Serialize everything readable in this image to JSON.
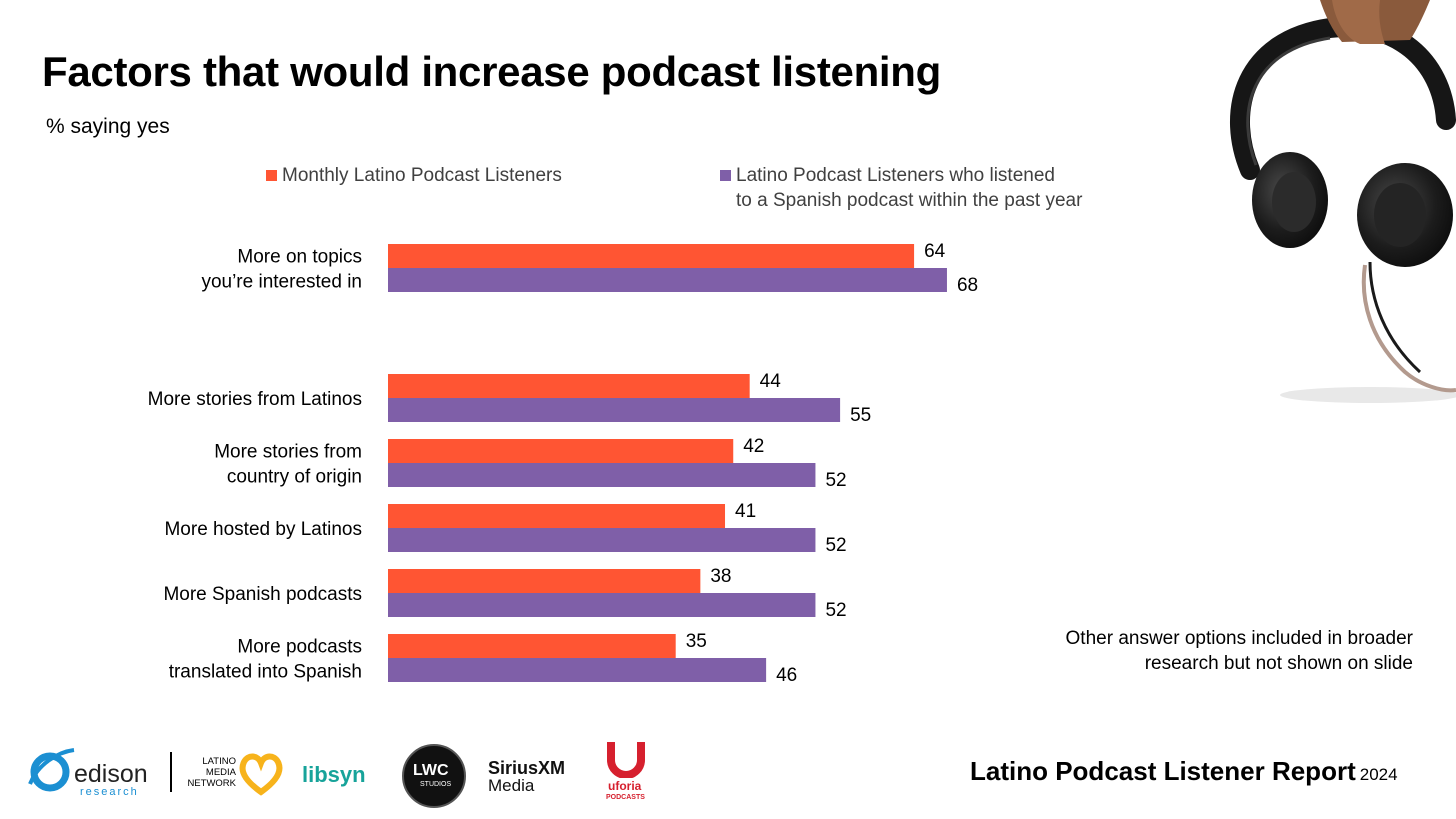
{
  "title": "Factors that would increase podcast listening",
  "subtitle": "% saying yes",
  "legend": [
    {
      "label": "Monthly Latino Podcast Listeners",
      "color": "#FF5533"
    },
    {
      "label_line1": "Latino Podcast Listeners  who listened",
      "label_line2": "to a Spanish podcast within the past year",
      "color": "#7F5FA8"
    }
  ],
  "chart_data": {
    "type": "bar",
    "orientation": "horizontal",
    "categories": [
      [
        "More on topics",
        "you’re interested in"
      ],
      [
        "More stories from Latinos"
      ],
      [
        "More stories from",
        "country of origin"
      ],
      [
        "More hosted by Latinos"
      ],
      [
        "More Spanish podcasts"
      ],
      [
        "More podcasts",
        "translated into Spanish"
      ]
    ],
    "series": [
      {
        "name": "Monthly Latino Podcast Listeners",
        "color": "#FF5533",
        "values": [
          64,
          44,
          42,
          41,
          38,
          35
        ]
      },
      {
        "name": "Latino Podcast Listeners  who listened to a Spanish podcast within the past year",
        "color": "#7F5FA8",
        "values": [
          68,
          55,
          52,
          52,
          52,
          46
        ]
      }
    ],
    "xlim": [
      0,
      100
    ],
    "grid": false,
    "legend_position": "top",
    "data_labels": true
  },
  "note": {
    "line1": "Other answer options included in broader",
    "line2": "research but not shown on slide"
  },
  "footer": {
    "report_title": "Latino Podcast Listener Report",
    "year": "2024"
  },
  "logos": {
    "edison": {
      "name": "edison",
      "sub": "research"
    },
    "lmn": {
      "line1": "LATINO",
      "line2": "MEDIA",
      "line3": "NETWORK"
    },
    "libsyn": "libsyn",
    "lwc": {
      "main": "LWC",
      "sub": "STUDIOS"
    },
    "sirius": {
      "line1": "SiriusXM",
      "line2": "Media"
    },
    "uforia": {
      "line1": "uforia",
      "line2": "PODCASTS"
    }
  },
  "colors": {
    "orange": "#FF5533",
    "purple": "#7F5FA8",
    "edison_blue": "#1B8FD2",
    "lmn_yellow": "#F7B31B",
    "libsyn_teal": "#17A39A",
    "uforia_red": "#D6202E"
  },
  "decor": {
    "headphones": "headphones-image"
  }
}
